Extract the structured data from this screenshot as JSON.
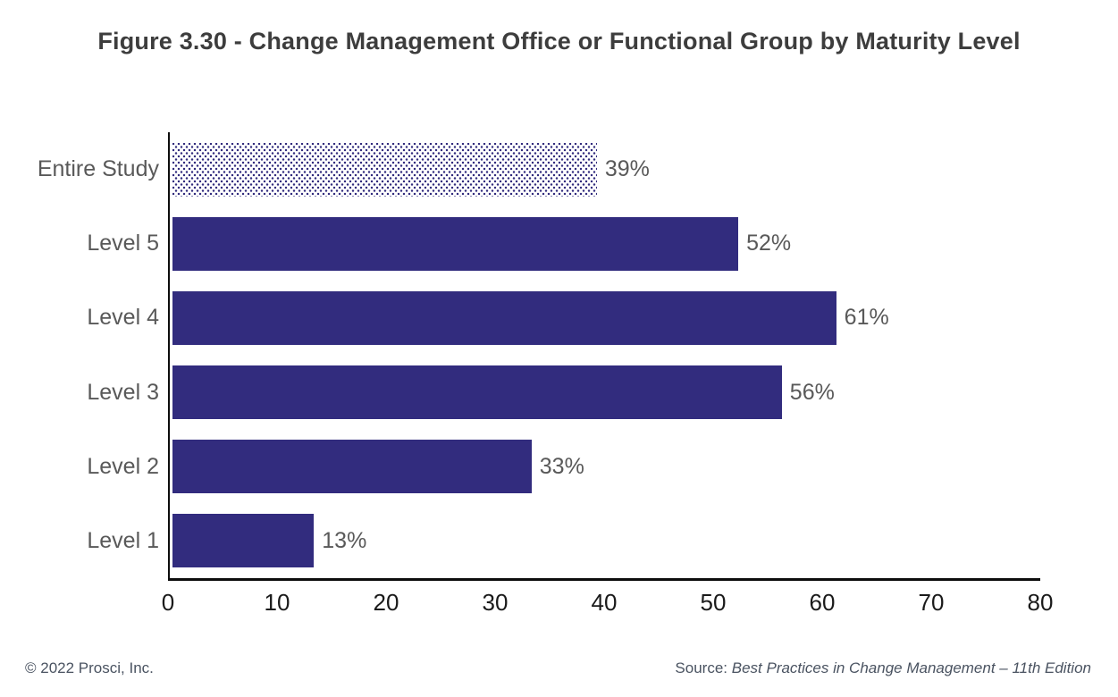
{
  "chart_data": {
    "type": "bar",
    "orientation": "horizontal",
    "title": "Figure 3.30 - Change Management Office or Functional Group by Maturity Level",
    "categories": [
      "Entire Study",
      "Level 5",
      "Level 4",
      "Level 3",
      "Level 2",
      "Level 1"
    ],
    "values": [
      39,
      52,
      61,
      56,
      33,
      13
    ],
    "value_labels": [
      "39%",
      "52%",
      "61%",
      "56%",
      "33%",
      "13%"
    ],
    "bar_styles": [
      "dotted",
      "solid",
      "solid",
      "solid",
      "solid",
      "solid"
    ],
    "xlim": [
      0,
      80
    ],
    "xticks": [
      0,
      10,
      20,
      30,
      40,
      50,
      60,
      70,
      80
    ],
    "grid": false,
    "legend": null
  },
  "colors": {
    "bar": "#322C7E",
    "axis": "#0d0d0d",
    "title": "#3d3d3d",
    "category_label": "#595959",
    "value_label": "#595959",
    "tick_label": "#1a1a1a",
    "footer": "#4a5361"
  },
  "footer": {
    "copyright": "© 2022 Prosci, Inc.",
    "source_prefix": "Source: ",
    "source_title": "Best Practices in Change Management – 11th Edition"
  }
}
